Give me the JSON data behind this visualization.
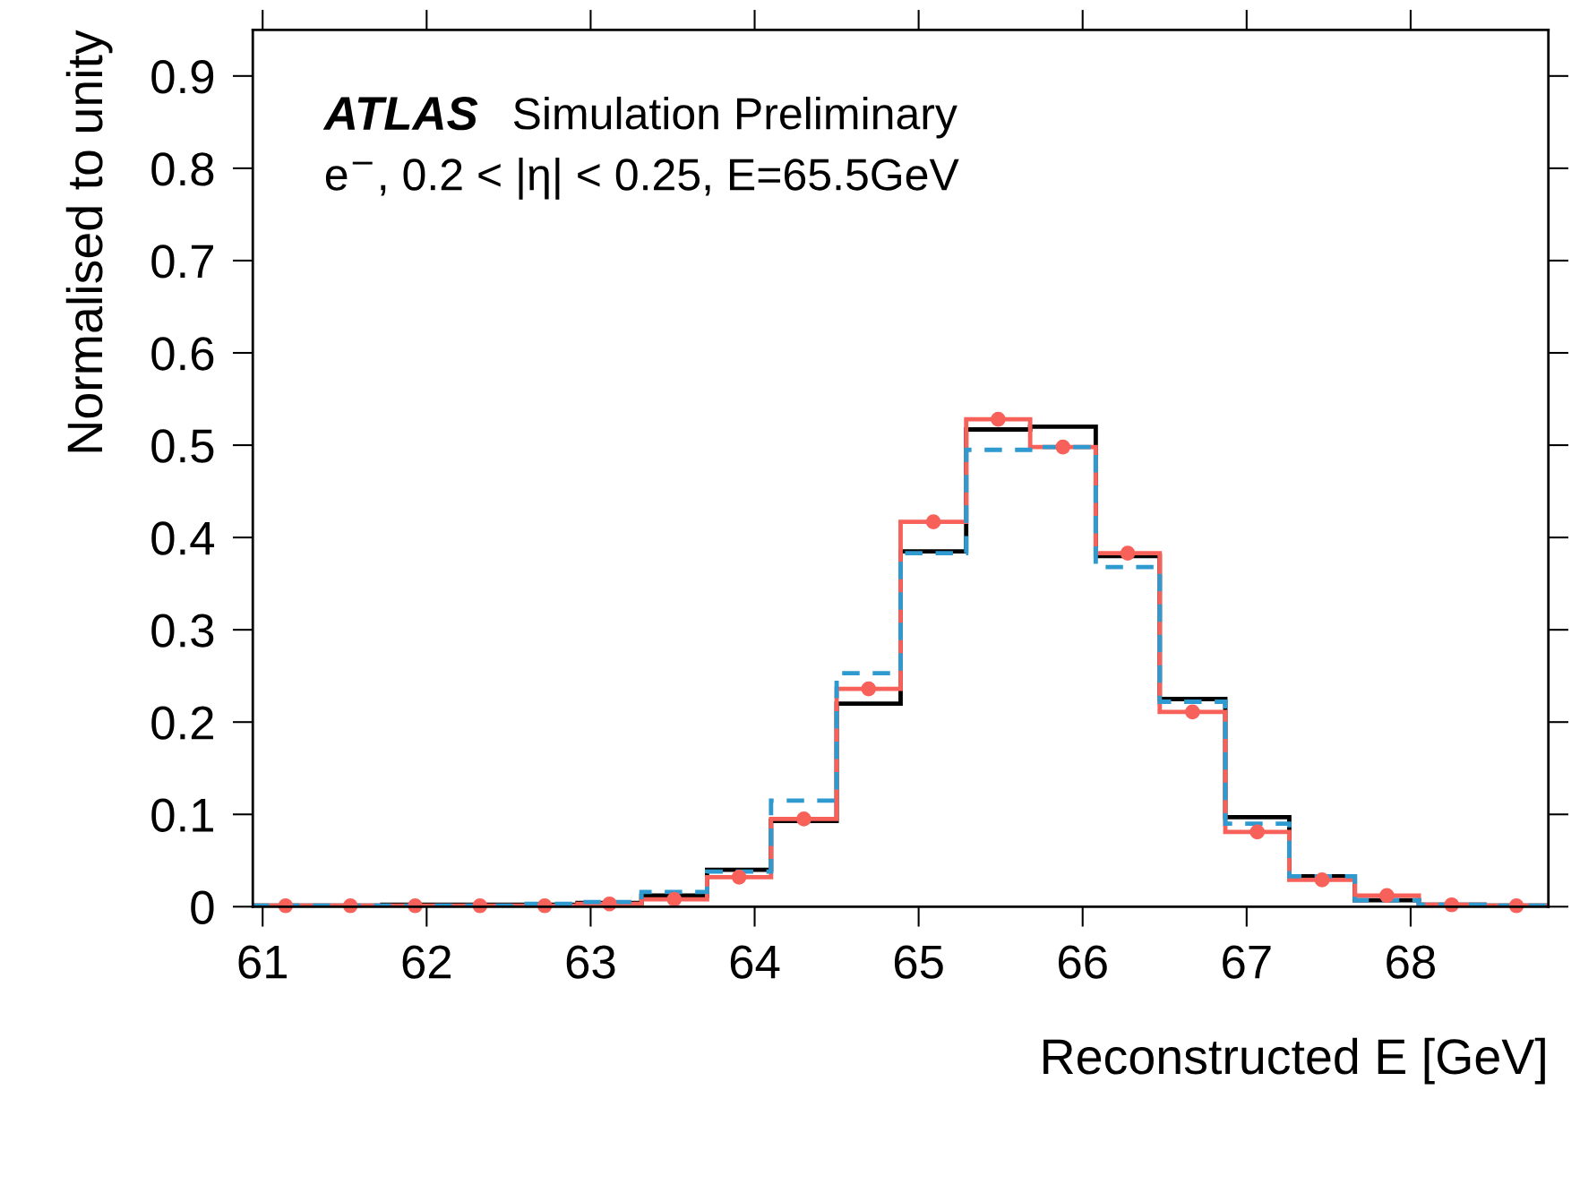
{
  "chart_data": {
    "type": "histogram",
    "xlabel": "Reconstructed E [GeV]",
    "ylabel": "Normalised to unity",
    "annotations": [
      "ATLAS",
      "Simulation Preliminary",
      "e$^{−}$, 0.2 < |η| < 0.25, E=65.5GeV"
    ],
    "bins": [
      60.94,
      61.34,
      61.73,
      62.13,
      62.52,
      62.92,
      63.31,
      63.71,
      64.1,
      64.5,
      64.89,
      65.29,
      65.68,
      66.08,
      66.47,
      66.87,
      67.26,
      67.66,
      68.05,
      68.45,
      68.84
    ],
    "series": [
      {
        "color": "#000000",
        "line_style": "solid",
        "values": [
          0.001,
          0.001,
          0.002,
          0.002,
          0.002,
          0.004,
          0.012,
          0.04,
          0.093,
          0.22,
          0.385,
          0.517,
          0.52,
          0.38,
          0.225,
          0.097,
          0.033,
          0.007,
          0.002,
          0.001
        ]
      },
      {
        "color": "#f8615a",
        "line_style": "solid",
        "values": [
          0.001,
          0.001,
          0.001,
          0.001,
          0.001,
          0.003,
          0.008,
          0.032,
          0.095,
          0.236,
          0.417,
          0.528,
          0.498,
          0.383,
          0.211,
          0.081,
          0.029,
          0.012,
          0.002,
          0.001
        ]
      },
      {
        "color": "#2f9ad0",
        "line_style": "dashed",
        "values": [
          0.001,
          0.001,
          0.001,
          0.001,
          0.003,
          0.005,
          0.016,
          0.038,
          0.115,
          0.253,
          0.383,
          0.495,
          0.498,
          0.368,
          0.222,
          0.09,
          0.033,
          0.007,
          0.002,
          0.001
        ]
      },
      {
        "type": "scatter",
        "color": "#f8615a",
        "marker": "circle",
        "x": [
          61.14,
          61.535,
          61.93,
          62.325,
          62.72,
          63.115,
          63.51,
          63.905,
          64.3,
          64.695,
          65.09,
          65.485,
          65.88,
          66.275,
          66.67,
          67.065,
          67.46,
          67.855,
          68.25,
          68.645
        ],
        "values": [
          0.001,
          0.001,
          0.001,
          0.001,
          0.001,
          0.003,
          0.008,
          0.032,
          0.095,
          0.236,
          0.417,
          0.528,
          0.498,
          0.383,
          0.211,
          0.081,
          0.029,
          0.012,
          0.002,
          0.001
        ]
      }
    ],
    "xlim": [
      60.94,
      68.84
    ],
    "xticks": [
      61,
      62,
      63,
      64,
      65,
      66,
      67,
      68
    ],
    "ylim": [
      0,
      0.95
    ],
    "yticks": [
      0,
      0.1,
      0.2,
      0.3,
      0.4,
      0.5,
      0.6,
      0.7,
      0.8,
      0.9
    ],
    "grid": false,
    "legend": false
  }
}
